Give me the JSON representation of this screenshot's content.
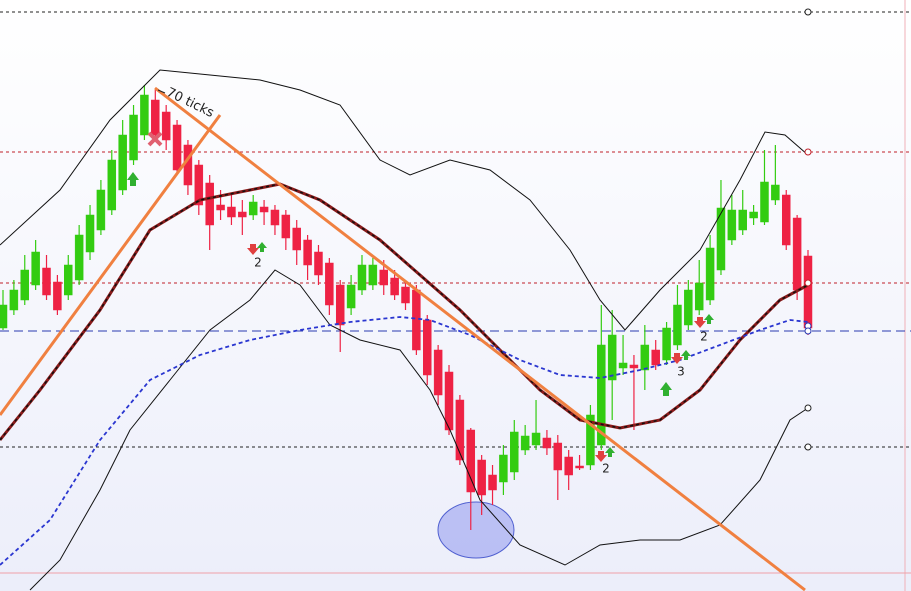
{
  "chart_data": {
    "type": "candlestick",
    "open": [
      263,
      281,
      291,
      306,
      323,
      309,
      296,
      311,
      339,
      361,
      381,
      401,
      431,
      456,
      491,
      479,
      466,
      446,
      426,
      408,
      386,
      384,
      379,
      376,
      384,
      381,
      376,
      363,
      351,
      339,
      328,
      306,
      283,
      301,
      306,
      321,
      313,
      304,
      301,
      271,
      241,
      219,
      191,
      161,
      131,
      116,
      109,
      119,
      141,
      146,
      153,
      148,
      134,
      125,
      126,
      146,
      211,
      223,
      226,
      221,
      241,
      231,
      246,
      266,
      281,
      291,
      321,
      351,
      361,
      373,
      369,
      391,
      396,
      373,
      335
    ],
    "high": [
      301,
      311,
      336,
      351,
      336,
      316,
      336,
      366,
      386,
      411,
      441,
      471,
      486,
      506,
      501,
      486,
      471,
      451,
      431,
      416,
      401,
      396,
      391,
      396,
      391,
      386,
      381,
      371,
      356,
      346,
      333,
      311,
      316,
      336,
      333,
      331,
      321,
      311,
      306,
      276,
      246,
      226,
      196,
      163,
      136,
      126,
      146,
      171,
      166,
      191,
      161,
      156,
      141,
      136,
      186,
      286,
      281,
      256,
      236,
      266,
      251,
      269,
      306,
      311,
      331,
      356,
      411,
      396,
      401,
      386,
      441,
      446,
      401,
      376,
      341
    ],
    "low": [
      261,
      276,
      286,
      301,
      291,
      276,
      291,
      306,
      331,
      356,
      376,
      396,
      426,
      451,
      451,
      441,
      416,
      396,
      376,
      341,
      371,
      366,
      356,
      371,
      366,
      356,
      341,
      326,
      311,
      306,
      276,
      239,
      276,
      296,
      301,
      296,
      291,
      281,
      236,
      206,
      186,
      156,
      126,
      61,
      76,
      86,
      96,
      111,
      136,
      141,
      136,
      91,
      101,
      121,
      121,
      141,
      171,
      216,
      161,
      201,
      221,
      226,
      241,
      261,
      276,
      286,
      316,
      346,
      356,
      366,
      366,
      386,
      341,
      291,
      256
    ],
    "close": [
      286,
      301,
      321,
      339,
      296,
      281,
      326,
      356,
      376,
      401,
      431,
      456,
      476,
      496,
      456,
      451,
      421,
      406,
      386,
      366,
      381,
      374,
      374,
      389,
      379,
      366,
      353,
      341,
      326,
      316,
      286,
      266,
      306,
      326,
      326,
      306,
      296,
      288,
      241,
      216,
      196,
      161,
      131,
      99,
      96,
      101,
      136,
      159,
      155,
      158,
      143,
      121,
      116,
      123,
      176,
      246,
      256,
      228,
      223,
      246,
      226,
      263,
      286,
      301,
      308,
      343,
      383,
      381,
      381,
      379,
      409,
      406,
      346,
      301,
      263
    ],
    "up_color": "#33cc11",
    "down_color": "#ee2244",
    "ylim": [
      0,
      591
    ],
    "annotations": [
      "70 ticks",
      "2",
      "2",
      "3",
      "2"
    ]
  }
}
